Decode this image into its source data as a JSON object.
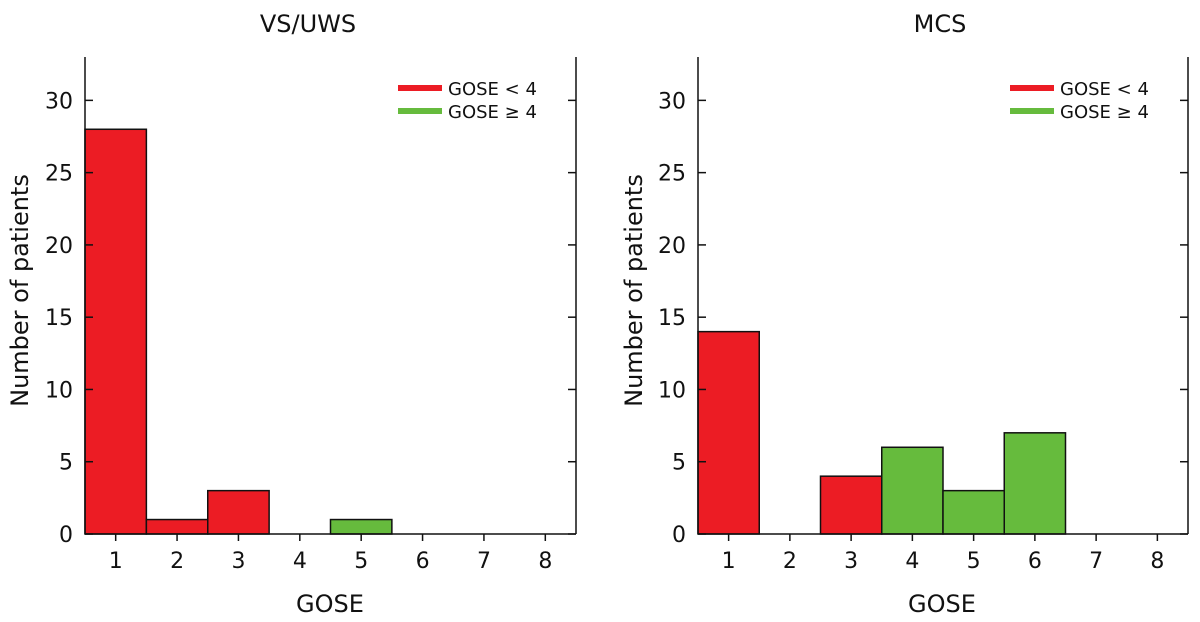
{
  "colors": {
    "red": "#ec1c24",
    "green": "#66bb3d",
    "axis": "#111111"
  },
  "chart_data": [
    {
      "type": "bar",
      "title": "VS/UWS",
      "xlabel": "GOSE",
      "ylabel": "Number of patients",
      "categories": [
        "1",
        "2",
        "3",
        "4",
        "5",
        "6",
        "7",
        "8"
      ],
      "series": [
        {
          "name": "GOSE < 4",
          "color": "#ec1c24",
          "values": [
            28,
            1,
            3,
            0,
            0,
            0,
            0,
            0
          ]
        },
        {
          "name": "GOSE ≥ 4",
          "color": "#66bb3d",
          "values": [
            0,
            0,
            0,
            0,
            1,
            0,
            0,
            0
          ]
        }
      ],
      "ylim": [
        0,
        33
      ],
      "yticks": [
        0,
        5,
        10,
        15,
        20,
        25,
        30
      ],
      "legend": "top-right",
      "grid": false
    },
    {
      "type": "bar",
      "title": "MCS",
      "xlabel": "GOSE",
      "ylabel": "Number of patients",
      "categories": [
        "1",
        "2",
        "3",
        "4",
        "5",
        "6",
        "7",
        "8"
      ],
      "series": [
        {
          "name": "GOSE < 4",
          "color": "#ec1c24",
          "values": [
            14,
            0,
            4,
            0,
            0,
            0,
            0,
            0
          ]
        },
        {
          "name": "GOSE ≥ 4",
          "color": "#66bb3d",
          "values": [
            0,
            0,
            0,
            6,
            3,
            7,
            0,
            0
          ]
        }
      ],
      "ylim": [
        0,
        33
      ],
      "yticks": [
        0,
        5,
        10,
        15,
        20,
        25,
        30
      ],
      "legend": "top-right",
      "grid": false
    }
  ]
}
